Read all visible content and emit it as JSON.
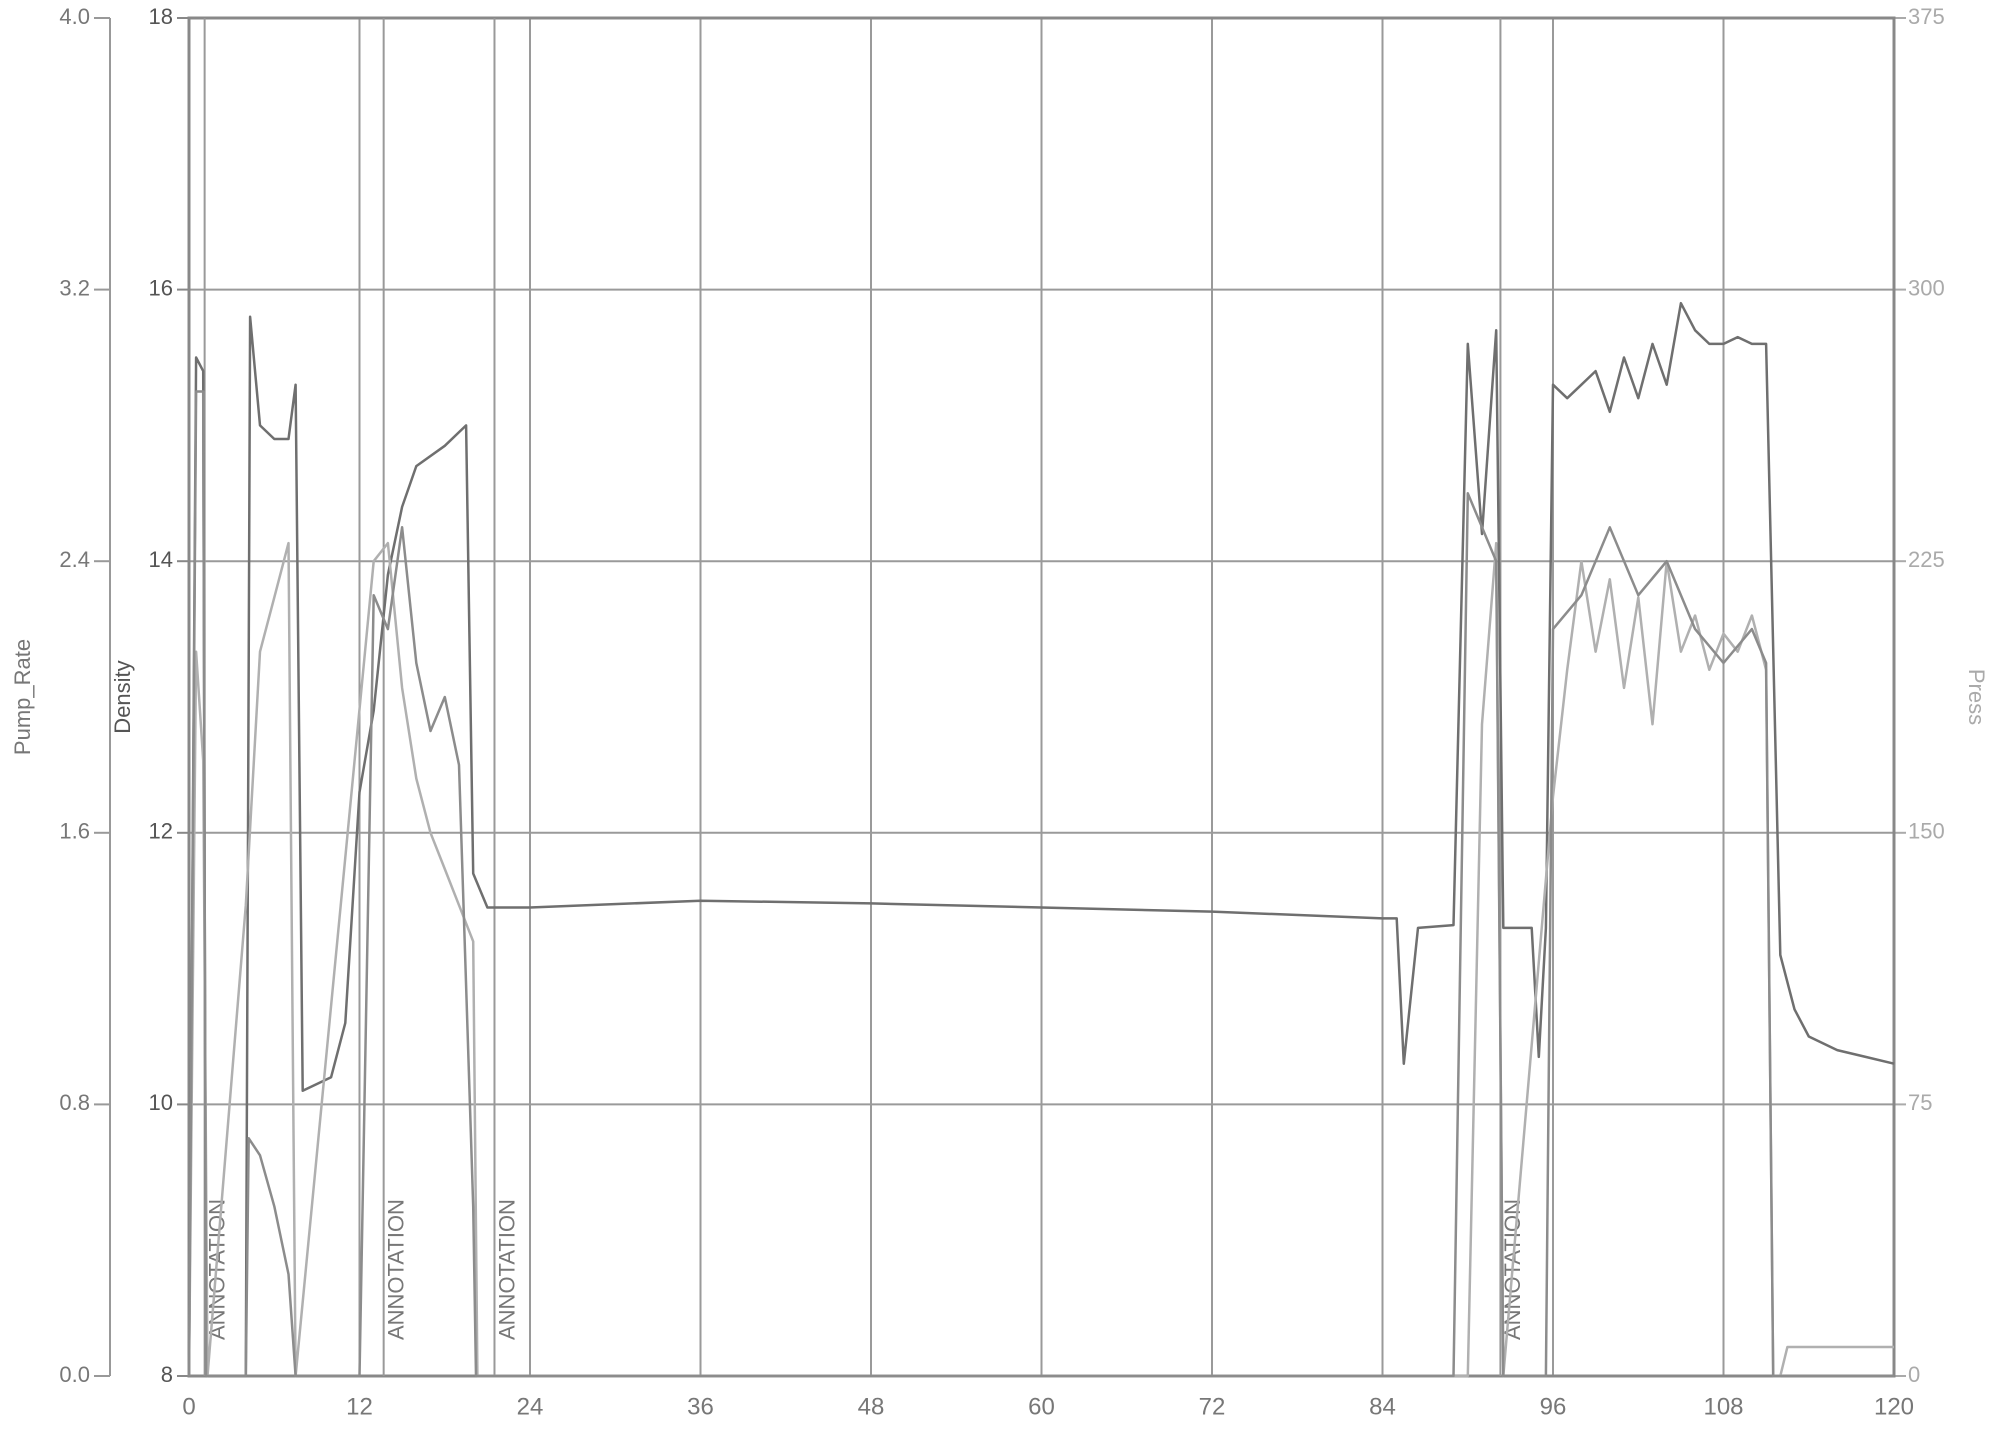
{
  "chart_data": {
    "type": "line",
    "xlim": [
      0,
      120
    ],
    "xticks": [
      0,
      12,
      24,
      36,
      48,
      60,
      72,
      84,
      96,
      108,
      120
    ],
    "ylabel": "Pump_Rate",
    "ylim": [
      0,
      4
    ],
    "yticks": [
      {
        "value": 0,
        "label": "0.0"
      },
      0.8,
      1.6,
      2.4,
      3.2,
      {
        "value": 4,
        "label": "4.0"
      }
    ],
    "y2label": "Density",
    "y2lim": [
      8,
      18
    ],
    "y2ticks": [
      8,
      10,
      12,
      14,
      16,
      18
    ],
    "y3label": "Press",
    "y3lim": [
      0,
      375
    ],
    "y3ticks": [
      0,
      75,
      150,
      225,
      300,
      375
    ],
    "grid": true,
    "series": [
      {
        "name": "Density",
        "color": "#6f6f6f",
        "axis": "y2",
        "x": [
          0,
          0.5,
          1,
          1.2,
          4,
          4.3,
          5,
          6,
          7,
          7.5,
          8,
          10,
          11,
          12,
          13,
          14,
          15,
          16,
          18,
          19.5,
          20,
          21,
          24,
          36,
          48,
          60,
          72,
          84,
          85,
          85.5,
          86.5,
          89,
          90,
          91,
          92,
          92.5,
          94.5,
          95,
          95.5,
          96,
          97,
          98,
          99,
          100,
          101,
          102,
          103,
          104,
          105,
          106,
          107,
          108,
          109,
          110,
          111,
          112,
          113,
          114,
          116,
          118,
          120
        ],
        "values": [
          8,
          15.5,
          15.4,
          8,
          8,
          15.8,
          15.0,
          14.9,
          14.9,
          15.3,
          10.1,
          10.2,
          10.6,
          12.3,
          12.9,
          13.9,
          14.4,
          14.7,
          14.85,
          15.0,
          11.7,
          11.45,
          11.45,
          11.5,
          11.48,
          11.45,
          11.42,
          11.37,
          11.37,
          10.3,
          11.3,
          11.32,
          15.6,
          14.2,
          15.7,
          11.3,
          11.3,
          10.35,
          11.3,
          15.3,
          15.2,
          15.3,
          15.4,
          15.1,
          15.5,
          15.2,
          15.6,
          15.3,
          15.9,
          15.7,
          15.6,
          15.6,
          15.65,
          15.6,
          15.6,
          11.1,
          10.7,
          10.5,
          10.4,
          10.35,
          10.3
        ]
      },
      {
        "name": "Press",
        "color": "#b0b0b0",
        "axis": "y3",
        "x": [
          0,
          0.5,
          1,
          1.3,
          4,
          5,
          6,
          7,
          7.5,
          13,
          14,
          15,
          16,
          17,
          18,
          19,
          20,
          20.3,
          90,
          91,
          92,
          92.5,
          96,
          97,
          98,
          99,
          100,
          101,
          102,
          103,
          104,
          105,
          106,
          107,
          108,
          109,
          110,
          111,
          111.5,
          112,
          112.5,
          120
        ],
        "values": [
          0,
          200,
          170,
          0,
          130,
          200,
          215,
          230,
          0,
          225,
          230,
          190,
          165,
          150,
          140,
          130,
          120,
          0,
          0,
          180,
          230,
          0,
          160,
          195,
          225,
          200,
          220,
          190,
          215,
          180,
          225,
          200,
          210,
          195,
          205,
          200,
          210,
          195,
          0,
          0,
          8,
          8
        ]
      },
      {
        "name": "Pump_Rate",
        "color": "#8c8c8c",
        "axis": "y",
        "x": [
          0,
          0.5,
          1,
          1.2,
          4,
          4.2,
          5,
          6,
          7,
          7.5,
          12,
          13,
          14,
          15,
          16,
          17,
          18,
          19,
          20,
          20.2,
          89,
          90,
          92,
          92.5,
          95.5,
          96,
          98,
          100,
          102,
          104,
          106,
          108,
          110,
          111,
          111.5,
          120
        ],
        "values": [
          0,
          2.9,
          2.9,
          0,
          0,
          0.7,
          0.65,
          0.5,
          0.3,
          0,
          0,
          2.3,
          2.2,
          2.5,
          2.1,
          1.9,
          2.0,
          1.8,
          0.5,
          0,
          0,
          2.6,
          2.4,
          0,
          0,
          2.2,
          2.3,
          2.5,
          2.3,
          2.4,
          2.2,
          2.1,
          2.2,
          2.1,
          0,
          0
        ]
      }
    ],
    "annotations": [
      {
        "x": 1.1,
        "label": "ANNOTATION"
      },
      {
        "x": 13.7,
        "label": "ANNOTATION"
      },
      {
        "x": 21.5,
        "label": "ANNOTATION"
      },
      {
        "x": 92.3,
        "label": "ANNOTATION"
      }
    ]
  }
}
